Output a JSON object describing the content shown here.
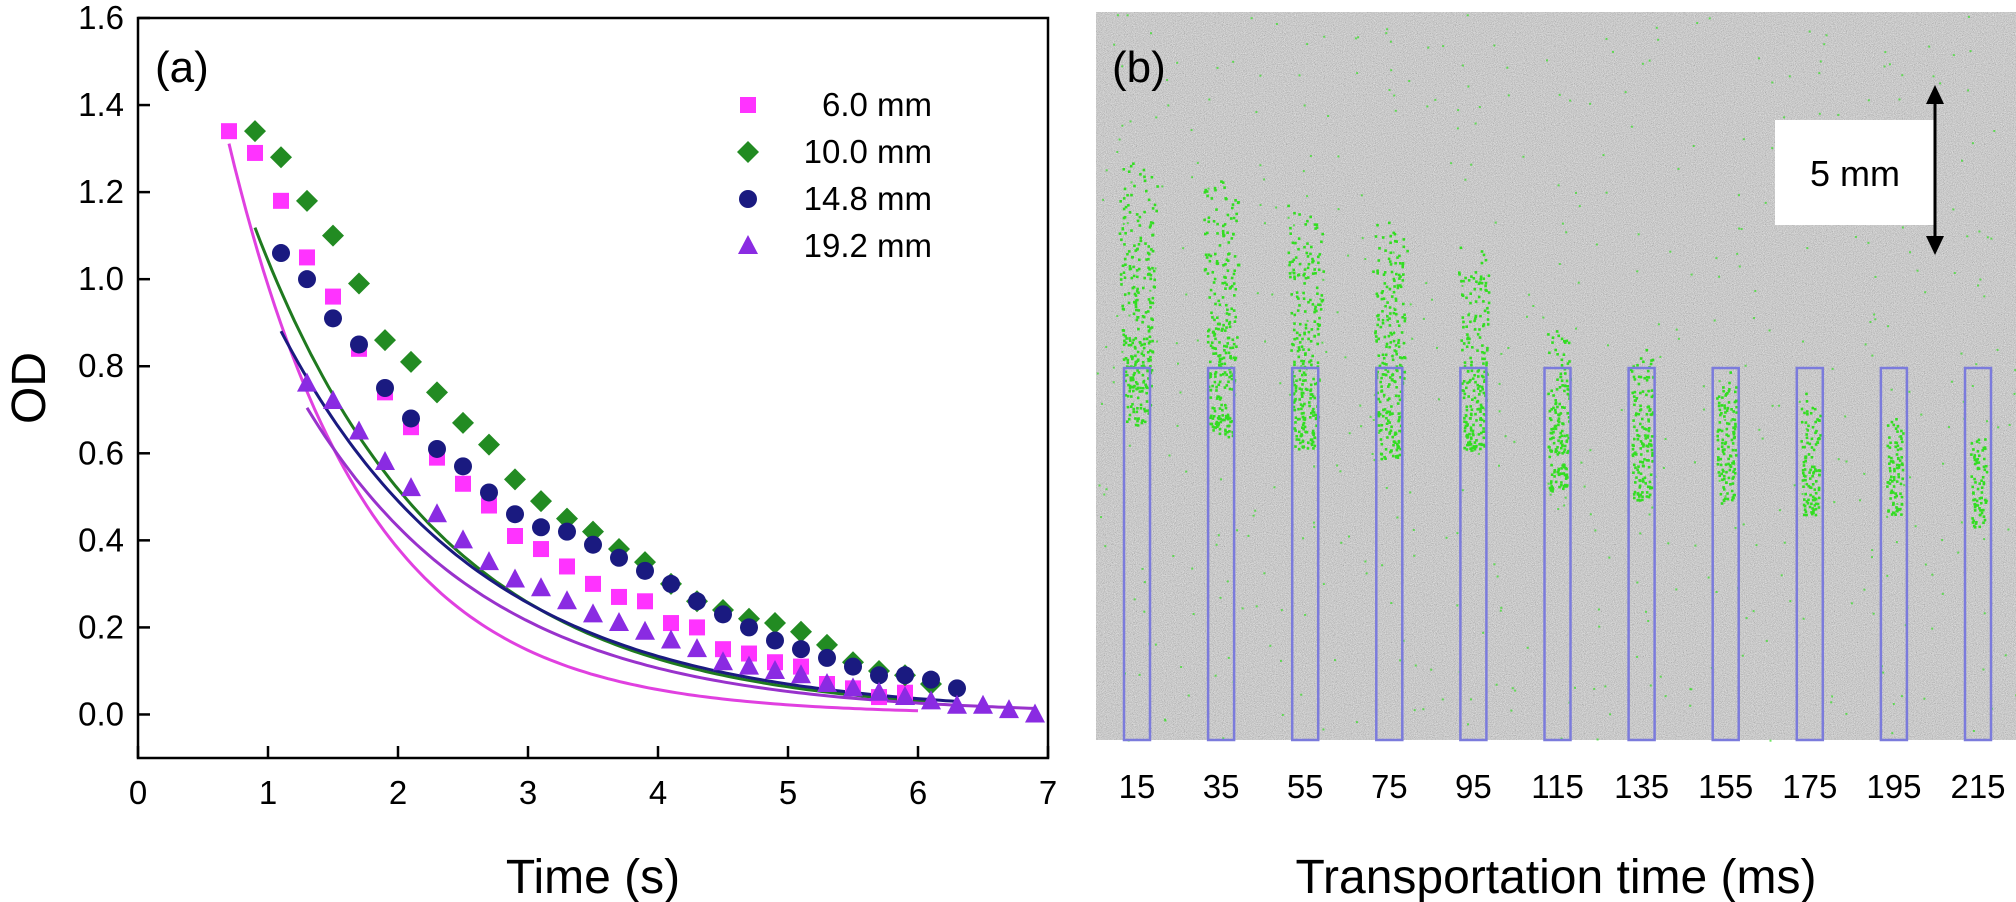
{
  "chart_data": [
    {
      "panel_label": "(a)",
      "type": "scatter",
      "xlabel": "Time (s)",
      "ylabel": "OD",
      "xlim": [
        0,
        7
      ],
      "ylim": [
        -0.1,
        1.6
      ],
      "xticks": [
        "0",
        "1",
        "2",
        "3",
        "4",
        "5",
        "6",
        "7"
      ],
      "yticks": [
        "0.0",
        "0.2",
        "0.4",
        "0.6",
        "0.8",
        "1.0",
        "1.2",
        "1.4",
        "1.6"
      ],
      "legend_position": "top-right",
      "grid": false,
      "series": [
        {
          "name": "6.0 mm",
          "marker": "square",
          "color": "#ff33ff",
          "x": [
            0.7,
            0.9,
            1.1,
            1.3,
            1.5,
            1.7,
            1.9,
            2.1,
            2.3,
            2.5,
            2.7,
            2.9,
            3.1,
            3.3,
            3.5,
            3.7,
            3.9,
            4.1,
            4.3,
            4.5,
            4.7,
            4.9,
            5.1,
            5.3,
            5.5,
            5.7,
            5.9
          ],
          "y": [
            1.34,
            1.29,
            1.18,
            1.05,
            0.96,
            0.84,
            0.74,
            0.66,
            0.59,
            0.53,
            0.48,
            0.41,
            0.38,
            0.34,
            0.3,
            0.27,
            0.26,
            0.21,
            0.2,
            0.15,
            0.14,
            0.12,
            0.11,
            0.07,
            0.06,
            0.04,
            0.05
          ],
          "fit": {
            "a": 2.55,
            "k": 0.95,
            "x_start": 0.7,
            "x_end": 6.0,
            "color": "#e040e0"
          }
        },
        {
          "name": "10.0 mm",
          "marker": "diamond",
          "color": "#228b22",
          "x": [
            0.9,
            1.1,
            1.3,
            1.5,
            1.7,
            1.9,
            2.1,
            2.3,
            2.5,
            2.7,
            2.9,
            3.1,
            3.3,
            3.5,
            3.7,
            3.9,
            4.1,
            4.3,
            4.5,
            4.7,
            4.9,
            5.1,
            5.3,
            5.5,
            5.7,
            5.9,
            6.1
          ],
          "y": [
            1.34,
            1.28,
            1.18,
            1.1,
            0.99,
            0.86,
            0.81,
            0.74,
            0.67,
            0.62,
            0.54,
            0.49,
            0.45,
            0.42,
            0.38,
            0.35,
            0.3,
            0.26,
            0.24,
            0.22,
            0.21,
            0.19,
            0.16,
            0.12,
            0.1,
            0.09,
            0.07
          ],
          "fit": {
            "a": 2.1,
            "k": 0.7,
            "x_start": 0.9,
            "x_end": 6.1,
            "color": "#1f7a1f"
          }
        },
        {
          "name": "14.8 mm",
          "marker": "circle",
          "color": "#1a1a80",
          "x": [
            1.1,
            1.3,
            1.5,
            1.7,
            1.9,
            2.1,
            2.3,
            2.5,
            2.7,
            2.9,
            3.1,
            3.3,
            3.5,
            3.7,
            3.9,
            4.1,
            4.3,
            4.5,
            4.7,
            4.9,
            5.1,
            5.3,
            5.5,
            5.7,
            5.9,
            6.1,
            6.3
          ],
          "y": [
            1.06,
            1.0,
            0.91,
            0.85,
            0.75,
            0.68,
            0.61,
            0.57,
            0.51,
            0.46,
            0.43,
            0.42,
            0.39,
            0.36,
            0.33,
            0.3,
            0.26,
            0.23,
            0.2,
            0.17,
            0.15,
            0.13,
            0.11,
            0.09,
            0.09,
            0.08,
            0.06
          ],
          "fit": {
            "a": 1.8,
            "k": 0.65,
            "x_start": 1.1,
            "x_end": 6.3,
            "color": "#1a1a80"
          }
        },
        {
          "name": "19.2 mm",
          "marker": "triangle",
          "color": "#8a2be2",
          "x": [
            1.3,
            1.5,
            1.7,
            1.9,
            2.1,
            2.3,
            2.5,
            2.7,
            2.9,
            3.1,
            3.3,
            3.5,
            3.7,
            3.9,
            4.1,
            4.3,
            4.5,
            4.7,
            4.9,
            5.1,
            5.3,
            5.5,
            5.7,
            5.9,
            6.1,
            6.3,
            6.5,
            6.7,
            6.9
          ],
          "y": [
            0.76,
            0.72,
            0.65,
            0.58,
            0.52,
            0.46,
            0.4,
            0.35,
            0.31,
            0.29,
            0.26,
            0.23,
            0.21,
            0.19,
            0.17,
            0.15,
            0.12,
            0.11,
            0.1,
            0.09,
            0.07,
            0.06,
            0.05,
            0.04,
            0.03,
            0.02,
            0.02,
            0.01,
            0.0
          ],
          "fit": {
            "a": 1.75,
            "k": 0.7,
            "x_start": 1.3,
            "x_end": 6.9,
            "color": "#9932cc"
          }
        }
      ]
    },
    {
      "panel_label": "(b)",
      "type": "image",
      "xlabel": "Transportation time (ms)",
      "categories": [
        "15",
        "35",
        "55",
        "75",
        "95",
        "115",
        "135",
        "155",
        "175",
        "195",
        "215"
      ],
      "scale_bar_label": "5 mm",
      "background_color": "#9a9a9a",
      "atom_color": "#33dd22",
      "box_color": "#7b7bdc",
      "cloud_intensity": [
        1.0,
        0.95,
        0.9,
        0.85,
        0.7,
        0.5,
        0.45,
        0.35,
        0.3,
        0.2,
        0.15
      ]
    }
  ]
}
